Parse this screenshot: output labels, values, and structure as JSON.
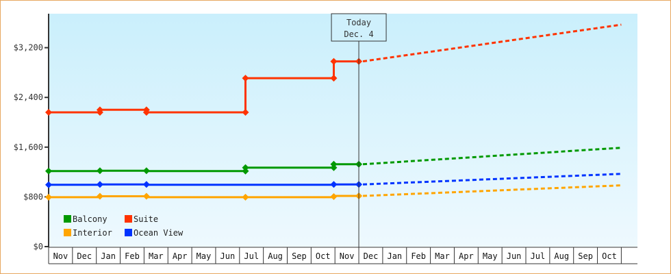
{
  "chart_data": {
    "type": "line",
    "title": "",
    "xlabel": "",
    "ylabel": "",
    "ylim": [
      0,
      3800
    ],
    "y_ticks": [
      {
        "value": 0,
        "label": "$0"
      },
      {
        "value": 800,
        "label": "$800"
      },
      {
        "value": 1600,
        "label": "$1,600"
      },
      {
        "value": 2400,
        "label": "$2,400"
      },
      {
        "value": 3200,
        "label": "$3,200"
      }
    ],
    "x_months": [
      "Nov",
      "Dec",
      "Jan",
      "Feb",
      "Mar",
      "Apr",
      "May",
      "Jun",
      "Jul",
      "Aug",
      "Sep",
      "Oct",
      "Nov",
      "Dec",
      "Jan",
      "Feb",
      "Mar",
      "Apr",
      "May",
      "Jun",
      "Jul",
      "Aug",
      "Sep",
      "Oct",
      ""
    ],
    "today_marker": {
      "line1": "Today",
      "line2": "Dec. 4",
      "month_index": 13.0
    },
    "legend": [
      {
        "name": "Balcony",
        "color": "#009900"
      },
      {
        "name": "Suite",
        "color": "#ff3300"
      },
      {
        "name": "Interior",
        "color": "#ffa500"
      },
      {
        "name": "Ocean View",
        "color": "#0033ff"
      }
    ],
    "series": [
      {
        "name": "Suite",
        "color": "#ff3300",
        "history": [
          [
            0.0,
            2160
          ],
          [
            2.15,
            2160
          ],
          [
            2.15,
            2200
          ],
          [
            4.1,
            2200
          ],
          [
            4.1,
            2160
          ],
          [
            8.25,
            2160
          ],
          [
            8.25,
            2710
          ],
          [
            11.95,
            2710
          ],
          [
            11.95,
            2980
          ],
          [
            13.0,
            2980
          ]
        ],
        "markers": [
          [
            0.0,
            2160
          ],
          [
            2.15,
            2160
          ],
          [
            2.15,
            2200
          ],
          [
            4.1,
            2200
          ],
          [
            4.1,
            2160
          ],
          [
            8.25,
            2160
          ],
          [
            8.25,
            2710
          ],
          [
            11.95,
            2710
          ],
          [
            11.95,
            2980
          ],
          [
            13.0,
            2980
          ]
        ],
        "projection": [
          [
            13.0,
            2980
          ],
          [
            24.0,
            3570
          ]
        ]
      },
      {
        "name": "Balcony",
        "color": "#009900",
        "history": [
          [
            0.0,
            1215
          ],
          [
            2.15,
            1215
          ],
          [
            2.15,
            1220
          ],
          [
            4.1,
            1220
          ],
          [
            4.1,
            1215
          ],
          [
            8.25,
            1215
          ],
          [
            8.25,
            1270
          ],
          [
            11.95,
            1270
          ],
          [
            11.95,
            1325
          ],
          [
            13.0,
            1325
          ]
        ],
        "markers": [
          [
            0.0,
            1215
          ],
          [
            2.15,
            1220
          ],
          [
            4.1,
            1220
          ],
          [
            8.25,
            1215
          ],
          [
            8.25,
            1270
          ],
          [
            11.95,
            1270
          ],
          [
            11.95,
            1325
          ],
          [
            13.0,
            1325
          ]
        ],
        "projection": [
          [
            13.0,
            1325
          ],
          [
            24.0,
            1590
          ]
        ]
      },
      {
        "name": "Ocean View",
        "color": "#0033ff",
        "history": [
          [
            0.0,
            995
          ],
          [
            2.15,
            995
          ],
          [
            2.15,
            1000
          ],
          [
            4.1,
            1000
          ],
          [
            4.1,
            995
          ],
          [
            11.95,
            995
          ],
          [
            11.95,
            1000
          ],
          [
            13.0,
            1000
          ]
        ],
        "markers": [
          [
            0.0,
            995
          ],
          [
            2.15,
            1000
          ],
          [
            4.1,
            1000
          ],
          [
            11.95,
            1000
          ],
          [
            13.0,
            1000
          ]
        ],
        "projection": [
          [
            13.0,
            1000
          ],
          [
            24.0,
            1170
          ]
        ]
      },
      {
        "name": "Interior",
        "color": "#ffa500",
        "history": [
          [
            0.0,
            795
          ],
          [
            2.15,
            795
          ],
          [
            2.15,
            810
          ],
          [
            4.1,
            810
          ],
          [
            4.1,
            795
          ],
          [
            11.95,
            795
          ],
          [
            11.95,
            815
          ],
          [
            13.0,
            815
          ]
        ],
        "markers": [
          [
            0.0,
            795
          ],
          [
            2.15,
            810
          ],
          [
            4.1,
            810
          ],
          [
            8.25,
            795
          ],
          [
            11.95,
            805
          ],
          [
            13.0,
            815
          ]
        ],
        "projection": [
          [
            13.0,
            815
          ],
          [
            24.0,
            985
          ]
        ]
      }
    ]
  }
}
